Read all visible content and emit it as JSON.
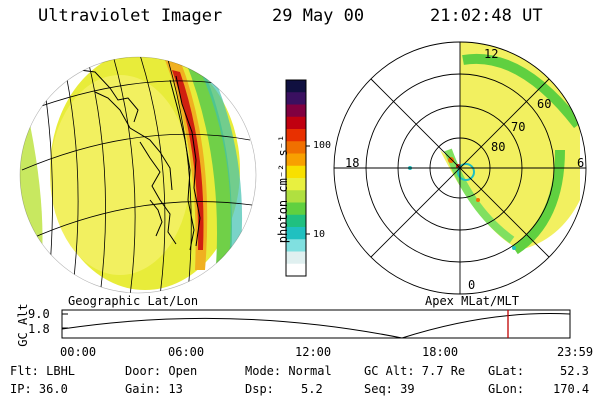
{
  "header": {
    "instrument": "Ultraviolet Imager",
    "date": "29 May 00",
    "time": "21:02:48 UT"
  },
  "globe_panel": {
    "caption": "Geographic Lat/Lon"
  },
  "polar_panel": {
    "caption": "Apex MLat/MLT",
    "mlt_labels": {
      "top": "12",
      "left": "18",
      "right": "6",
      "bottom": "0"
    },
    "lat_labels": [
      "60",
      "70",
      "80"
    ]
  },
  "colorbar": {
    "unit_label": "photon cm⁻² s⁻¹",
    "tick_100": "100",
    "tick_10": "10",
    "colors_top_to_bottom": [
      "#101040",
      "#3a1060",
      "#800040",
      "#c00010",
      "#e83000",
      "#f07000",
      "#f8a000",
      "#f8e000",
      "#e8f040",
      "#b0e040",
      "#60d040",
      "#20c080",
      "#20c0c0",
      "#80e0e0",
      "#e0f0f0",
      "#ffffff"
    ]
  },
  "timeline": {
    "axis_label": "GC Alt",
    "y_ticks": [
      "9.0",
      "1.8"
    ],
    "x_ticks": [
      "00:00",
      "06:00",
      "12:00",
      "18:00",
      "23:59"
    ],
    "marker_color": "#c00000"
  },
  "footer": {
    "flt": "Flt: LBHL",
    "ip": "IP: 36.0",
    "door": "Door: Open",
    "gain": "Gain: 13",
    "mode": "Mode: Normal",
    "dsp_label": "Dsp:",
    "dsp_value": "5.2",
    "gc_alt": "GC Alt: 7.7 Re",
    "seq": "Seq: 39",
    "glat_label": "GLat:",
    "glat_value": "52.3",
    "glon_label": "GLon:",
    "glon_value": "170.4"
  }
}
